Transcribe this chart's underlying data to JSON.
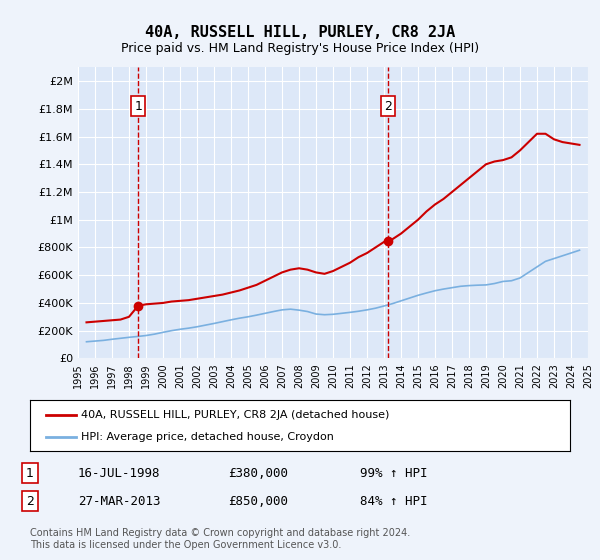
{
  "title": "40A, RUSSELL HILL, PURLEY, CR8 2JA",
  "subtitle": "Price paid vs. HM Land Registry's House Price Index (HPI)",
  "background_color": "#eef3fb",
  "plot_bg_color": "#dde8f8",
  "grid_color": "#ffffff",
  "red_line_color": "#cc0000",
  "blue_line_color": "#7ab0e0",
  "marker1_year": 1998.54,
  "marker1_value": 380000,
  "marker2_year": 2013.24,
  "marker2_value": 850000,
  "ylim": [
    0,
    2100000
  ],
  "xlim_start": 1995,
  "xlim_end": 2025,
  "yticks": [
    0,
    200000,
    400000,
    600000,
    800000,
    1000000,
    1200000,
    1400000,
    1600000,
    1800000,
    2000000
  ],
  "ytick_labels": [
    "£0",
    "£200K",
    "£400K",
    "£600K",
    "£800K",
    "£1M",
    "£1.2M",
    "£1.4M",
    "£1.6M",
    "£1.8M",
    "£2M"
  ],
  "xtick_years": [
    1995,
    1996,
    1997,
    1998,
    1999,
    2000,
    2001,
    2002,
    2003,
    2004,
    2005,
    2006,
    2007,
    2008,
    2009,
    2010,
    2011,
    2012,
    2013,
    2014,
    2015,
    2016,
    2017,
    2018,
    2019,
    2020,
    2021,
    2022,
    2023,
    2024,
    2025
  ],
  "legend_label_red": "40A, RUSSELL HILL, PURLEY, CR8 2JA (detached house)",
  "legend_label_blue": "HPI: Average price, detached house, Croydon",
  "annotation1_label": "1",
  "annotation1_date": "16-JUL-1998",
  "annotation1_price": "£380,000",
  "annotation1_hpi": "99% ↑ HPI",
  "annotation2_label": "2",
  "annotation2_date": "27-MAR-2013",
  "annotation2_price": "£850,000",
  "annotation2_hpi": "84% ↑ HPI",
  "copyright_text": "Contains HM Land Registry data © Crown copyright and database right 2024.\nThis data is licensed under the Open Government Licence v3.0.",
  "red_line_x": [
    1995.5,
    1996.0,
    1996.5,
    1997.0,
    1997.5,
    1998.0,
    1998.54,
    1999.0,
    1999.5,
    2000.0,
    2000.5,
    2001.0,
    2001.5,
    2002.0,
    2002.5,
    2003.0,
    2003.5,
    2004.0,
    2004.5,
    2005.0,
    2005.5,
    2006.0,
    2006.5,
    2007.0,
    2007.5,
    2008.0,
    2008.5,
    2009.0,
    2009.5,
    2010.0,
    2010.5,
    2011.0,
    2011.5,
    2012.0,
    2012.5,
    2013.0,
    2013.24,
    2013.5,
    2014.0,
    2014.5,
    2015.0,
    2015.5,
    2016.0,
    2016.5,
    2017.0,
    2017.5,
    2018.0,
    2018.5,
    2019.0,
    2019.5,
    2020.0,
    2020.5,
    2021.0,
    2021.5,
    2022.0,
    2022.5,
    2023.0,
    2023.5,
    2024.0,
    2024.5
  ],
  "red_line_y": [
    260000,
    265000,
    270000,
    275000,
    280000,
    300000,
    380000,
    390000,
    395000,
    400000,
    410000,
    415000,
    420000,
    430000,
    440000,
    450000,
    460000,
    475000,
    490000,
    510000,
    530000,
    560000,
    590000,
    620000,
    640000,
    650000,
    640000,
    620000,
    610000,
    630000,
    660000,
    690000,
    730000,
    760000,
    800000,
    840000,
    850000,
    860000,
    900000,
    950000,
    1000000,
    1060000,
    1110000,
    1150000,
    1200000,
    1250000,
    1300000,
    1350000,
    1400000,
    1420000,
    1430000,
    1450000,
    1500000,
    1560000,
    1620000,
    1620000,
    1580000,
    1560000,
    1550000,
    1540000
  ],
  "blue_line_x": [
    1995.5,
    1996.0,
    1996.5,
    1997.0,
    1997.5,
    1998.0,
    1998.5,
    1999.0,
    1999.5,
    2000.0,
    2000.5,
    2001.0,
    2001.5,
    2002.0,
    2002.5,
    2003.0,
    2003.5,
    2004.0,
    2004.5,
    2005.0,
    2005.5,
    2006.0,
    2006.5,
    2007.0,
    2007.5,
    2008.0,
    2008.5,
    2009.0,
    2009.5,
    2010.0,
    2010.5,
    2011.0,
    2011.5,
    2012.0,
    2012.5,
    2013.0,
    2013.5,
    2014.0,
    2014.5,
    2015.0,
    2015.5,
    2016.0,
    2016.5,
    2017.0,
    2017.5,
    2018.0,
    2018.5,
    2019.0,
    2019.5,
    2020.0,
    2020.5,
    2021.0,
    2021.5,
    2022.0,
    2022.5,
    2023.0,
    2023.5,
    2024.0,
    2024.5
  ],
  "blue_line_y": [
    120000,
    125000,
    130000,
    138000,
    145000,
    152000,
    158000,
    165000,
    175000,
    188000,
    200000,
    210000,
    218000,
    228000,
    240000,
    252000,
    265000,
    278000,
    290000,
    300000,
    312000,
    325000,
    338000,
    350000,
    355000,
    348000,
    338000,
    320000,
    315000,
    318000,
    325000,
    332000,
    340000,
    350000,
    362000,
    378000,
    395000,
    415000,
    435000,
    455000,
    472000,
    488000,
    500000,
    510000,
    520000,
    525000,
    528000,
    530000,
    540000,
    555000,
    560000,
    580000,
    620000,
    660000,
    700000,
    720000,
    740000,
    760000,
    780000
  ]
}
